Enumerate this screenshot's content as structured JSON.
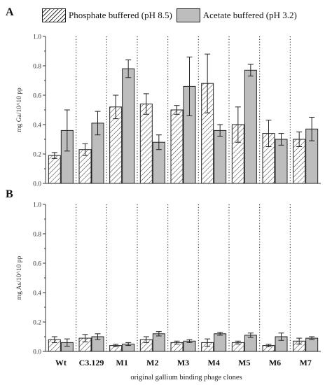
{
  "legend": {
    "series1": "Phosphate buffered (pH 8.5)",
    "series2": "Acetate buffered (pH 3.2)"
  },
  "colors": {
    "phosphate_fill": "#ffffff",
    "acetate_fill": "#bdbdbd",
    "hatch": "#333333"
  },
  "xlabel": "original gallium binding phage clones",
  "chart_data": [
    {
      "type": "bar",
      "panel_label": "A",
      "ylabel": "mg Ga/10^10 pp",
      "ylim": [
        0,
        1.0
      ],
      "yticks": [
        "0.0",
        "0.2",
        "0.4",
        "0.6",
        "0.8",
        "1.0"
      ],
      "grid": false,
      "categories": [
        "Wt",
        "C3.129",
        "M1",
        "M2",
        "M3",
        "M4",
        "M5",
        "M6",
        "M7"
      ],
      "series": [
        {
          "name": "Phosphate buffered (pH 8.5)",
          "values": [
            0.19,
            0.23,
            0.52,
            0.54,
            0.5,
            0.68,
            0.4,
            0.34,
            0.3
          ],
          "errors": [
            0.02,
            0.04,
            0.08,
            0.07,
            0.03,
            0.2,
            0.12,
            0.09,
            0.05
          ]
        },
        {
          "name": "Acetate buffered (pH 3.2)",
          "values": [
            0.36,
            0.41,
            0.78,
            0.28,
            0.66,
            0.36,
            0.77,
            0.3,
            0.37
          ],
          "errors": [
            0.14,
            0.08,
            0.06,
            0.05,
            0.2,
            0.04,
            0.04,
            0.04,
            0.08
          ]
        }
      ]
    },
    {
      "type": "bar",
      "panel_label": "B",
      "ylabel": "mg As/10^10 pp",
      "ylim": [
        0,
        1.0
      ],
      "yticks": [
        "0.0",
        "0.2",
        "0.4",
        "0.6",
        "0.8",
        "1.0"
      ],
      "grid": false,
      "categories": [
        "Wt",
        "C3.129",
        "M1",
        "M2",
        "M3",
        "M4",
        "M5",
        "M6",
        "M7"
      ],
      "series": [
        {
          "name": "Phosphate buffered (pH 8.5)",
          "values": [
            0.08,
            0.09,
            0.04,
            0.08,
            0.06,
            0.06,
            0.06,
            0.04,
            0.07
          ],
          "errors": [
            0.02,
            0.025,
            0.008,
            0.02,
            0.01,
            0.025,
            0.01,
            0.008,
            0.02
          ]
        },
        {
          "name": "Acetate buffered (pH 3.2)",
          "values": [
            0.06,
            0.1,
            0.05,
            0.12,
            0.07,
            0.12,
            0.11,
            0.1,
            0.09
          ],
          "errors": [
            0.025,
            0.02,
            0.01,
            0.015,
            0.01,
            0.01,
            0.015,
            0.025,
            0.01
          ]
        }
      ]
    }
  ]
}
